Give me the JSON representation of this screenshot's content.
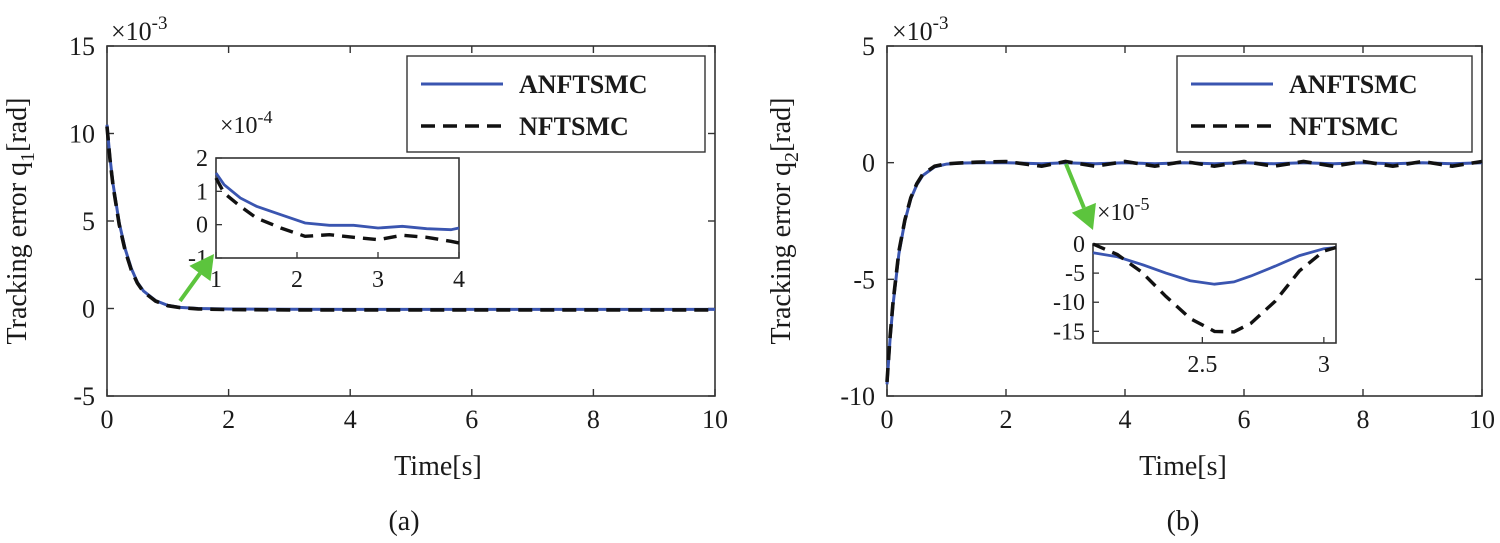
{
  "chart_data": [
    {
      "type": "line",
      "panel_label": "(a)",
      "xlabel": "Time[s]",
      "ylabel": "Tracking error q",
      "ylabel_sub": "1",
      "ylabel_unit": "[rad]",
      "scale_note": "×10",
      "scale_exp": "-3",
      "xlim": [
        0,
        10
      ],
      "ylim": [
        -5,
        15
      ],
      "x_ticks": [
        0,
        2,
        4,
        6,
        8,
        10
      ],
      "y_ticks": [
        -5,
        0,
        5,
        10,
        15
      ],
      "legend": [
        "ANFTSMC",
        "NFTSMC"
      ],
      "legend_position": "top-right",
      "series": [
        {
          "name": "ANFTSMC",
          "color": "#3a55b0",
          "style": "solid",
          "x": [
            0,
            0.05,
            0.1,
            0.2,
            0.3,
            0.4,
            0.5,
            0.6,
            0.8,
            1.0,
            1.2,
            1.5,
            2,
            3,
            4,
            5,
            6,
            7,
            8,
            9,
            10
          ],
          "y": [
            10.5,
            8.6,
            7.1,
            4.9,
            3.4,
            2.3,
            1.5,
            1.0,
            0.45,
            0.18,
            0.06,
            0.0,
            -0.03,
            -0.04,
            -0.05,
            -0.05,
            -0.05,
            -0.05,
            -0.05,
            -0.05,
            -0.05
          ]
        },
        {
          "name": "NFTSMC",
          "color": "#111111",
          "style": "dashed",
          "x": [
            0,
            0.05,
            0.1,
            0.2,
            0.3,
            0.4,
            0.5,
            0.6,
            0.8,
            1.0,
            1.2,
            1.5,
            2,
            3,
            4,
            5,
            6,
            7,
            8,
            9,
            10
          ],
          "y": [
            10.4,
            8.5,
            7.0,
            4.8,
            3.3,
            2.2,
            1.45,
            0.95,
            0.42,
            0.16,
            0.05,
            -0.02,
            -0.06,
            -0.08,
            -0.08,
            -0.08,
            -0.08,
            -0.08,
            -0.08,
            -0.08,
            -0.08
          ]
        }
      ],
      "inset": {
        "xlim": [
          1,
          4
        ],
        "ylim": [
          -1,
          2
        ],
        "x_ticks": [
          1,
          2,
          3,
          4
        ],
        "y_ticks": [
          -1,
          0,
          1,
          2
        ],
        "scale_note": "×10",
        "scale_exp": "-4",
        "series": [
          {
            "name": "ANFTSMC",
            "x": [
              1.0,
              1.1,
              1.3,
              1.5,
              1.8,
              2.1,
              2.4,
              2.7,
              3.0,
              3.3,
              3.6,
              3.9,
              4.0
            ],
            "y": [
              1.55,
              1.2,
              0.8,
              0.55,
              0.3,
              0.05,
              -0.02,
              -0.02,
              -0.1,
              -0.05,
              -0.12,
              -0.15,
              -0.1
            ]
          },
          {
            "name": "NFTSMC",
            "x": [
              1.0,
              1.1,
              1.3,
              1.5,
              1.8,
              2.1,
              2.4,
              2.7,
              3.0,
              3.3,
              3.6,
              3.9,
              4.0
            ],
            "y": [
              1.4,
              0.95,
              0.55,
              0.2,
              -0.1,
              -0.35,
              -0.3,
              -0.38,
              -0.45,
              -0.32,
              -0.38,
              -0.5,
              -0.55
            ]
          }
        ]
      }
    },
    {
      "type": "line",
      "panel_label": "(b)",
      "xlabel": "Time[s]",
      "ylabel": "Tracking error q",
      "ylabel_sub": "2",
      "ylabel_unit": "[rad]",
      "scale_note": "×10",
      "scale_exp": "-3",
      "xlim": [
        0,
        10
      ],
      "ylim": [
        -10,
        5
      ],
      "x_ticks": [
        0,
        2,
        4,
        6,
        8,
        10
      ],
      "y_ticks": [
        -10,
        -5,
        0,
        5
      ],
      "legend": [
        "ANFTSMC",
        "NFTSMC"
      ],
      "legend_position": "top-right",
      "series": [
        {
          "name": "ANFTSMC",
          "color": "#3a55b0",
          "style": "solid",
          "x": [
            0,
            0.05,
            0.1,
            0.2,
            0.3,
            0.4,
            0.5,
            0.6,
            0.8,
            1.0,
            1.2,
            1.5,
            2,
            2.6,
            3,
            3.5,
            4,
            4.5,
            5,
            5.5,
            6,
            6.5,
            7,
            7.5,
            8,
            8.5,
            9,
            9.5,
            10
          ],
          "y": [
            -9.5,
            -7.6,
            -6.1,
            -3.9,
            -2.5,
            -1.55,
            -0.95,
            -0.55,
            -0.18,
            -0.06,
            -0.02,
            0.0,
            0.0,
            -0.05,
            0.0,
            -0.05,
            0.0,
            -0.05,
            0.0,
            -0.05,
            0.0,
            -0.05,
            0.0,
            -0.05,
            0.0,
            -0.05,
            0.0,
            -0.05,
            0.0
          ]
        },
        {
          "name": "NFTSMC",
          "color": "#111111",
          "style": "dashed",
          "x": [
            0,
            0.05,
            0.1,
            0.2,
            0.3,
            0.4,
            0.5,
            0.6,
            0.8,
            1.0,
            1.2,
            1.5,
            2,
            2.6,
            3,
            3.5,
            4,
            4.5,
            5,
            5.5,
            6,
            6.5,
            7,
            7.5,
            8,
            8.5,
            9,
            9.5,
            10
          ],
          "y": [
            -9.4,
            -7.5,
            -6.0,
            -3.8,
            -2.45,
            -1.5,
            -0.9,
            -0.5,
            -0.15,
            -0.05,
            -0.02,
            0.02,
            0.05,
            -0.15,
            0.05,
            -0.15,
            0.05,
            -0.15,
            0.05,
            -0.15,
            0.05,
            -0.15,
            0.05,
            -0.15,
            0.05,
            -0.15,
            0.05,
            -0.15,
            0.05
          ]
        }
      ],
      "inset": {
        "xlim": [
          2.05,
          3.05
        ],
        "ylim": [
          -17,
          0
        ],
        "x_ticks": [
          2.5,
          3
        ],
        "y_ticks": [
          -15,
          -10,
          -5,
          0
        ],
        "scale_note": "×10",
        "scale_exp": "-5",
        "series": [
          {
            "name": "ANFTSMC",
            "x": [
              2.05,
              2.15,
              2.25,
              2.35,
              2.45,
              2.55,
              2.63,
              2.7,
              2.8,
              2.9,
              3.0,
              3.05
            ],
            "y": [
              -1.5,
              -2.2,
              -3.5,
              -5.0,
              -6.3,
              -6.9,
              -6.5,
              -5.5,
              -3.8,
              -2.0,
              -0.8,
              -0.6
            ]
          },
          {
            "name": "NFTSMC",
            "x": [
              2.05,
              2.15,
              2.25,
              2.35,
              2.45,
              2.55,
              2.63,
              2.7,
              2.8,
              2.9,
              3.0,
              3.05
            ],
            "y": [
              0.0,
              -1.8,
              -4.8,
              -9.0,
              -12.8,
              -15.0,
              -15.1,
              -13.6,
              -9.8,
              -4.6,
              -1.2,
              -0.6
            ]
          }
        ]
      }
    }
  ]
}
